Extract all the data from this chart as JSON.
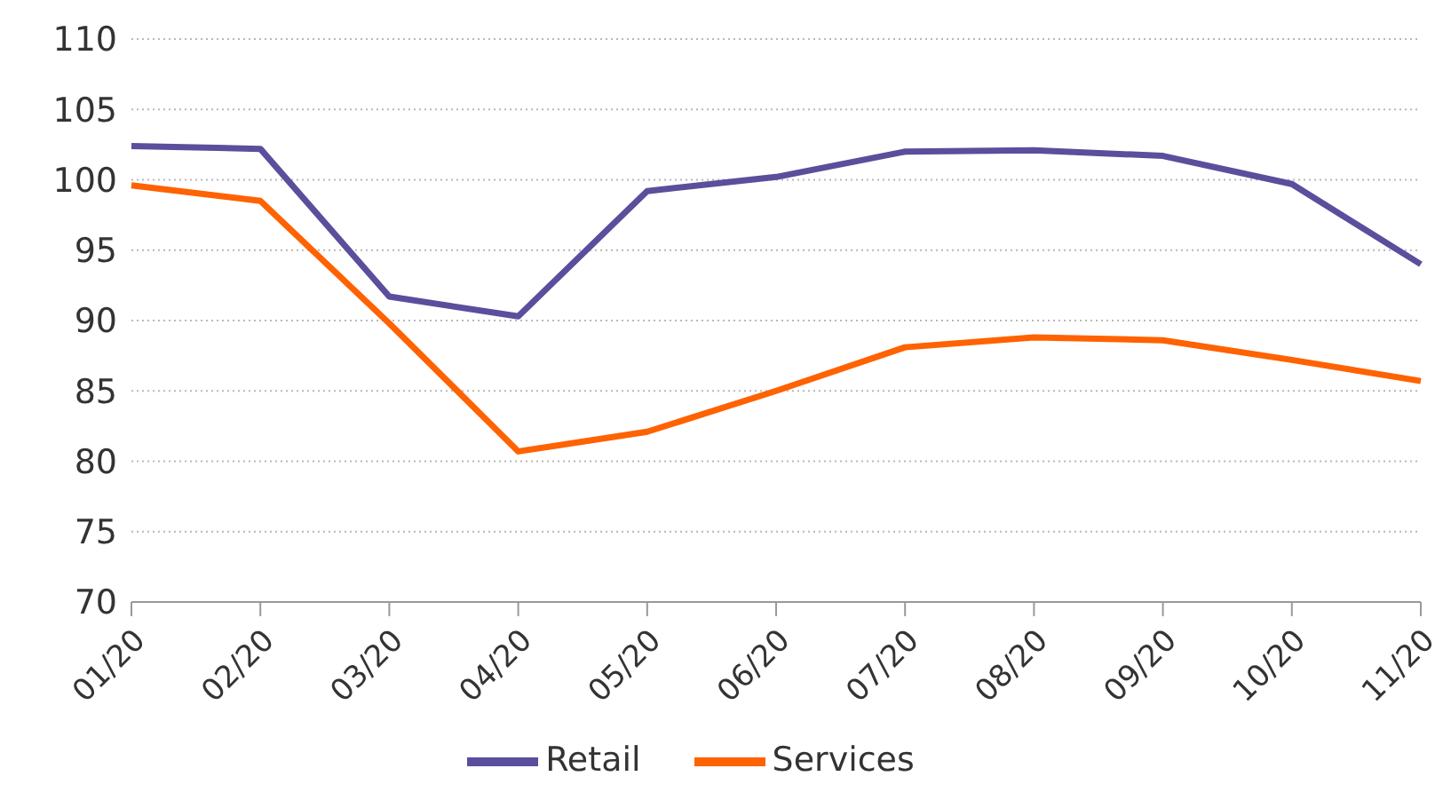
{
  "chart_data": {
    "type": "line",
    "categories": [
      "01/20",
      "02/20",
      "03/20",
      "04/20",
      "05/20",
      "06/20",
      "07/20",
      "08/20",
      "09/20",
      "10/20",
      "11/20"
    ],
    "series": [
      {
        "name": "Retail",
        "color": "#5a4f9c",
        "values": [
          102.4,
          102.2,
          91.7,
          90.3,
          99.2,
          100.2,
          102,
          102.1,
          101.7,
          99.7,
          94
        ]
      },
      {
        "name": "Services",
        "color": "#ff6200",
        "values": [
          99.6,
          98.5,
          89.8,
          80.7,
          82.1,
          85,
          88.1,
          88.8,
          88.6,
          87.2,
          85.7
        ]
      }
    ],
    "ylim": [
      70,
      110
    ],
    "yticks": [
      70,
      75,
      80,
      85,
      90,
      95,
      100,
      105,
      110
    ],
    "grid": "y",
    "legend": "bottom",
    "marker": "none",
    "line_style": "solid"
  }
}
